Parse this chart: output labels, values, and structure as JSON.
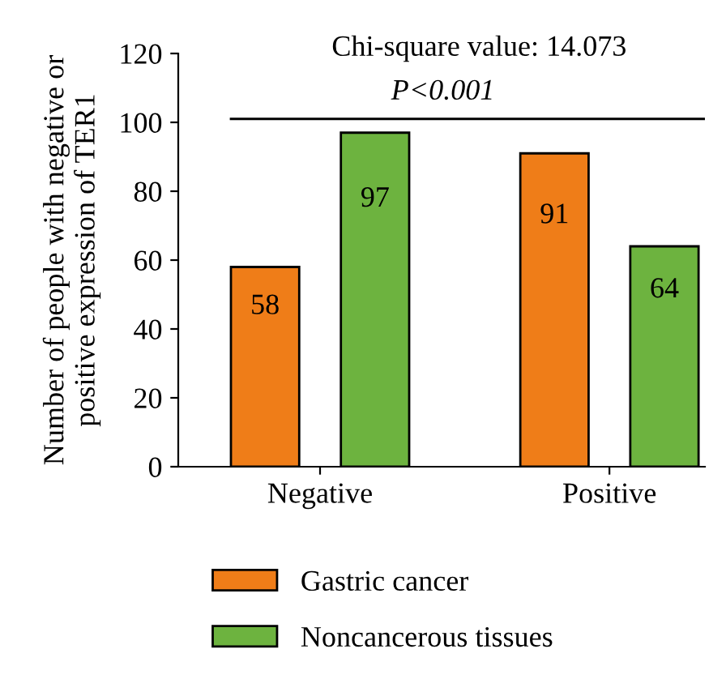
{
  "chart_data": {
    "type": "bar",
    "ylabel": "Number of people with negative or\npositive expression of TER1",
    "categories": [
      "Negative",
      "Positive"
    ],
    "series": [
      {
        "name": "Gastric cancer",
        "color": "#ef7d18",
        "values": [
          58,
          91
        ]
      },
      {
        "name": "Noncancerous tissues",
        "color": "#6db33f",
        "values": [
          97,
          64
        ]
      }
    ],
    "ref_lines": [
      {
        "axis": "y",
        "value": 101,
        "color": "#000000"
      }
    ],
    "ylim": [
      0,
      120
    ],
    "yticks": [
      0,
      20,
      40,
      60,
      80,
      100,
      120
    ],
    "data_labels": true,
    "legend": "bottom",
    "grid": false,
    "annotations": [
      "Chi-square value: 14.073",
      "P<0.001"
    ]
  }
}
